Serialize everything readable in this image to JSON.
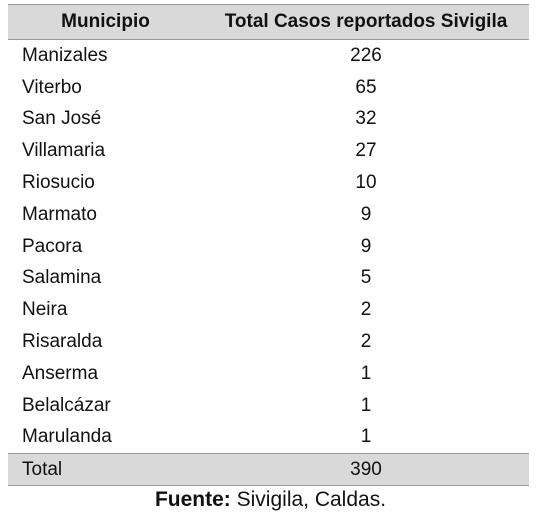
{
  "table": {
    "headers": {
      "municipio": "Municipio",
      "total": "Total Casos reportados Sivigila"
    },
    "rows": [
      {
        "municipio": "Manizales",
        "total": "226"
      },
      {
        "municipio": "Viterbo",
        "total": "65"
      },
      {
        "municipio": "San José",
        "total": "32"
      },
      {
        "municipio": "Villamaria",
        "total": "27"
      },
      {
        "municipio": "Riosucio",
        "total": "10"
      },
      {
        "municipio": "Marmato",
        "total": "9"
      },
      {
        "municipio": "Pacora",
        "total": "9"
      },
      {
        "municipio": "Salamina",
        "total": "5"
      },
      {
        "municipio": "Neira",
        "total": "2"
      },
      {
        "municipio": "Risaralda",
        "total": "2"
      },
      {
        "municipio": "Anserma",
        "total": "1"
      },
      {
        "municipio": "Belalcázar",
        "total": "1"
      },
      {
        "municipio": "Marulanda",
        "total": "1"
      }
    ],
    "footer": {
      "label": "Total",
      "total": "390"
    }
  },
  "source": {
    "label": "Fuente:",
    "text": " Sivigila, Caldas."
  },
  "colors": {
    "header_background": "#d9d9d9",
    "footer_background": "#d9d9d9",
    "rule": "#9a9a9a"
  }
}
